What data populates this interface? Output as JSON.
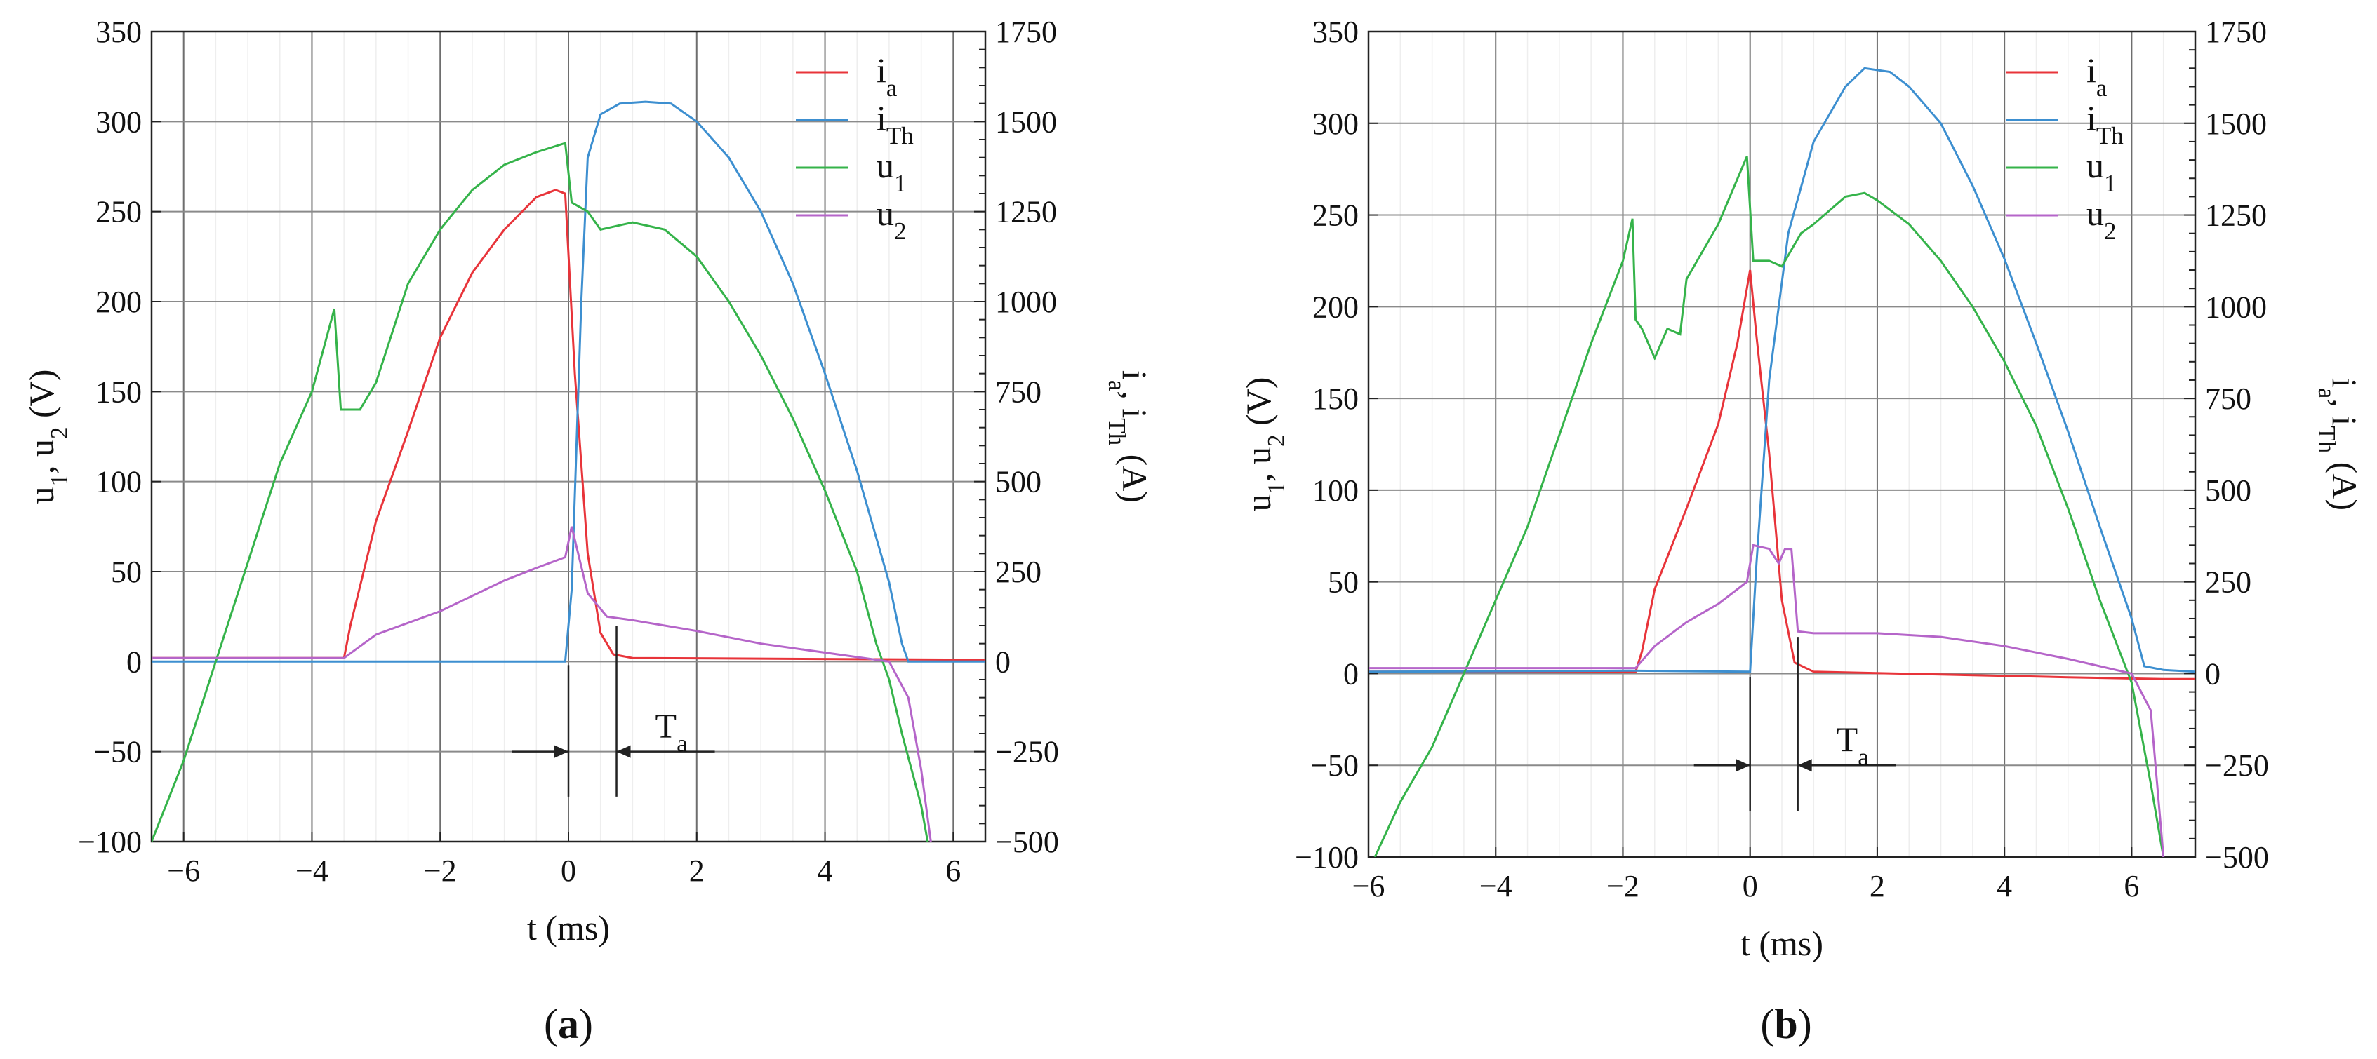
{
  "chart_data": [
    {
      "type": "line",
      "panel_label": "(a)",
      "xlabel": "t (ms)",
      "ylabel_left": "u1, u2 (V)",
      "ylabel_right": "ia, iTh (A)",
      "xlim": [
        -6.5,
        6.5
      ],
      "ylim_left": [
        -100,
        350
      ],
      "ylim_right": [
        -500,
        1750
      ],
      "x_ticks": [
        -6,
        -4,
        -2,
        0,
        2,
        4,
        6
      ],
      "y_left_ticks": [
        -100,
        -50,
        0,
        50,
        100,
        150,
        200,
        250,
        300,
        350
      ],
      "y_right_ticks": [
        -500,
        -250,
        0,
        250,
        500,
        750,
        1000,
        1250,
        1500,
        1750
      ],
      "grid": true,
      "legend_position": "top-right",
      "annotation": "Ta",
      "annotation_range_ms": [
        0,
        0.75
      ],
      "series": [
        {
          "name": "ia",
          "axis": "right",
          "color": "#e8343a",
          "points": [
            [
              -6.5,
              10
            ],
            [
              -3.5,
              10
            ],
            [
              -3.4,
              100
            ],
            [
              -3.0,
              390
            ],
            [
              -2.5,
              640
            ],
            [
              -2.0,
              900
            ],
            [
              -1.5,
              1080
            ],
            [
              -1.0,
              1200
            ],
            [
              -0.5,
              1290
            ],
            [
              -0.2,
              1310
            ],
            [
              -0.05,
              1300
            ],
            [
              0.1,
              800
            ],
            [
              0.3,
              300
            ],
            [
              0.5,
              80
            ],
            [
              0.7,
              20
            ],
            [
              1.0,
              10
            ],
            [
              6.5,
              5
            ]
          ]
        },
        {
          "name": "iTh",
          "axis": "right",
          "color": "#3d8fd0",
          "points": [
            [
              -6.5,
              0
            ],
            [
              -0.05,
              0
            ],
            [
              0.05,
              200
            ],
            [
              0.2,
              1000
            ],
            [
              0.3,
              1400
            ],
            [
              0.5,
              1520
            ],
            [
              0.8,
              1550
            ],
            [
              1.2,
              1555
            ],
            [
              1.6,
              1550
            ],
            [
              2.0,
              1500
            ],
            [
              2.5,
              1400
            ],
            [
              3.0,
              1250
            ],
            [
              3.5,
              1050
            ],
            [
              4.0,
              800
            ],
            [
              4.5,
              530
            ],
            [
              5.0,
              220
            ],
            [
              5.2,
              50
            ],
            [
              5.3,
              0
            ],
            [
              6.5,
              0
            ]
          ]
        },
        {
          "name": "u1",
          "axis": "left",
          "color": "#35b34a",
          "points": [
            [
              -6.5,
              -100
            ],
            [
              -6.0,
              -55
            ],
            [
              -5.5,
              0
            ],
            [
              -5.0,
              55
            ],
            [
              -4.5,
              110
            ],
            [
              -4.0,
              150
            ],
            [
              -3.65,
              196
            ],
            [
              -3.55,
              140
            ],
            [
              -3.25,
              140
            ],
            [
              -3.0,
              155
            ],
            [
              -2.5,
              210
            ],
            [
              -2.0,
              240
            ],
            [
              -1.5,
              262
            ],
            [
              -1.0,
              276
            ],
            [
              -0.5,
              283
            ],
            [
              -0.05,
              288
            ],
            [
              0.05,
              255
            ],
            [
              0.3,
              250
            ],
            [
              0.5,
              240
            ],
            [
              1.0,
              244
            ],
            [
              1.5,
              240
            ],
            [
              2.0,
              225
            ],
            [
              2.5,
              200
            ],
            [
              3.0,
              170
            ],
            [
              3.5,
              135
            ],
            [
              4.0,
              95
            ],
            [
              4.5,
              50
            ],
            [
              4.8,
              10
            ],
            [
              5.0,
              -10
            ],
            [
              5.2,
              -40
            ],
            [
              5.5,
              -80
            ],
            [
              5.6,
              -100
            ]
          ]
        },
        {
          "name": "u2",
          "axis": "left",
          "color": "#b565c9",
          "points": [
            [
              -6.5,
              2
            ],
            [
              -3.5,
              2
            ],
            [
              -3.0,
              15
            ],
            [
              -2.0,
              28
            ],
            [
              -1.0,
              45
            ],
            [
              -0.5,
              52
            ],
            [
              -0.05,
              58
            ],
            [
              0.05,
              75
            ],
            [
              0.3,
              38
            ],
            [
              0.6,
              25
            ],
            [
              1.0,
              23
            ],
            [
              2.0,
              17
            ],
            [
              3.0,
              10
            ],
            [
              4.0,
              5
            ],
            [
              5.0,
              0
            ],
            [
              5.3,
              -20
            ],
            [
              5.5,
              -60
            ],
            [
              5.65,
              -100
            ]
          ]
        }
      ]
    },
    {
      "type": "line",
      "panel_label": "(b)",
      "xlabel": "t (ms)",
      "ylabel_left": "u1, u2 (V)",
      "ylabel_right": "ia, iTh (A)",
      "xlim": [
        -6,
        7
      ],
      "ylim_left": [
        -100,
        350
      ],
      "ylim_right": [
        -500,
        1750
      ],
      "x_ticks": [
        -6,
        -4,
        -2,
        0,
        2,
        4,
        6
      ],
      "y_left_ticks": [
        -100,
        -50,
        0,
        50,
        100,
        150,
        200,
        250,
        300,
        350
      ],
      "y_right_ticks": [
        -500,
        -250,
        0,
        250,
        500,
        750,
        1000,
        1250,
        1500,
        1750
      ],
      "grid": true,
      "legend_position": "top-right",
      "annotation": "Ta",
      "annotation_range_ms": [
        0,
        0.75
      ],
      "series": [
        {
          "name": "ia",
          "axis": "right",
          "color": "#e8343a",
          "points": [
            [
              -6,
              5
            ],
            [
              -1.8,
              5
            ],
            [
              -1.7,
              60
            ],
            [
              -1.5,
              230
            ],
            [
              -1.0,
              450
            ],
            [
              -0.5,
              680
            ],
            [
              -0.2,
              900
            ],
            [
              0,
              1100
            ],
            [
              0.1,
              920
            ],
            [
              0.3,
              600
            ],
            [
              0.5,
              200
            ],
            [
              0.7,
              30
            ],
            [
              1.0,
              5
            ],
            [
              5.0,
              -10
            ],
            [
              6.5,
              -15
            ],
            [
              7,
              -15
            ]
          ]
        },
        {
          "name": "iTh",
          "axis": "right",
          "color": "#3d8fd0",
          "points": [
            [
              -6,
              5
            ],
            [
              -1.9,
              8
            ],
            [
              0,
              5
            ],
            [
              0.1,
              300
            ],
            [
              0.3,
              800
            ],
            [
              0.6,
              1200
            ],
            [
              1.0,
              1450
            ],
            [
              1.5,
              1600
            ],
            [
              1.8,
              1650
            ],
            [
              2.2,
              1640
            ],
            [
              2.5,
              1600
            ],
            [
              3.0,
              1500
            ],
            [
              3.5,
              1330
            ],
            [
              4.0,
              1130
            ],
            [
              4.5,
              900
            ],
            [
              5.0,
              660
            ],
            [
              5.5,
              400
            ],
            [
              6.0,
              150
            ],
            [
              6.2,
              20
            ],
            [
              6.5,
              10
            ],
            [
              7,
              5
            ]
          ]
        },
        {
          "name": "u1",
          "axis": "left",
          "color": "#35b34a",
          "points": [
            [
              -5.9,
              -100
            ],
            [
              -5.5,
              -70
            ],
            [
              -5.0,
              -40
            ],
            [
              -4.5,
              0
            ],
            [
              -4.0,
              40
            ],
            [
              -3.5,
              80
            ],
            [
              -3.0,
              130
            ],
            [
              -2.5,
              180
            ],
            [
              -2.0,
              225
            ],
            [
              -1.85,
              248
            ],
            [
              -1.8,
              193
            ],
            [
              -1.7,
              188
            ],
            [
              -1.5,
              172
            ],
            [
              -1.3,
              188
            ],
            [
              -1.1,
              185
            ],
            [
              -1.0,
              215
            ],
            [
              -0.5,
              245
            ],
            [
              -0.05,
              282
            ],
            [
              0.05,
              225
            ],
            [
              0.3,
              225
            ],
            [
              0.5,
              222
            ],
            [
              0.8,
              240
            ],
            [
              1.0,
              245
            ],
            [
              1.5,
              260
            ],
            [
              1.8,
              262
            ],
            [
              2.0,
              258
            ],
            [
              2.5,
              245
            ],
            [
              3.0,
              225
            ],
            [
              3.5,
              200
            ],
            [
              4.0,
              170
            ],
            [
              4.5,
              135
            ],
            [
              5.0,
              90
            ],
            [
              5.5,
              40
            ],
            [
              6.0,
              -5
            ],
            [
              6.3,
              -60
            ],
            [
              6.5,
              -100
            ]
          ]
        },
        {
          "name": "u2",
          "axis": "left",
          "color": "#b565c9",
          "points": [
            [
              -6,
              3
            ],
            [
              -1.8,
              3
            ],
            [
              -1.5,
              15
            ],
            [
              -1.0,
              28
            ],
            [
              -0.5,
              38
            ],
            [
              -0.05,
              50
            ],
            [
              0.05,
              70
            ],
            [
              0.3,
              68
            ],
            [
              0.45,
              60
            ],
            [
              0.55,
              68
            ],
            [
              0.65,
              68
            ],
            [
              0.75,
              23
            ],
            [
              1.0,
              22
            ],
            [
              2.0,
              22
            ],
            [
              3.0,
              20
            ],
            [
              4.0,
              15
            ],
            [
              5.0,
              8
            ],
            [
              6.0,
              0
            ],
            [
              6.3,
              -20
            ],
            [
              6.5,
              -100
            ]
          ]
        }
      ]
    }
  ]
}
